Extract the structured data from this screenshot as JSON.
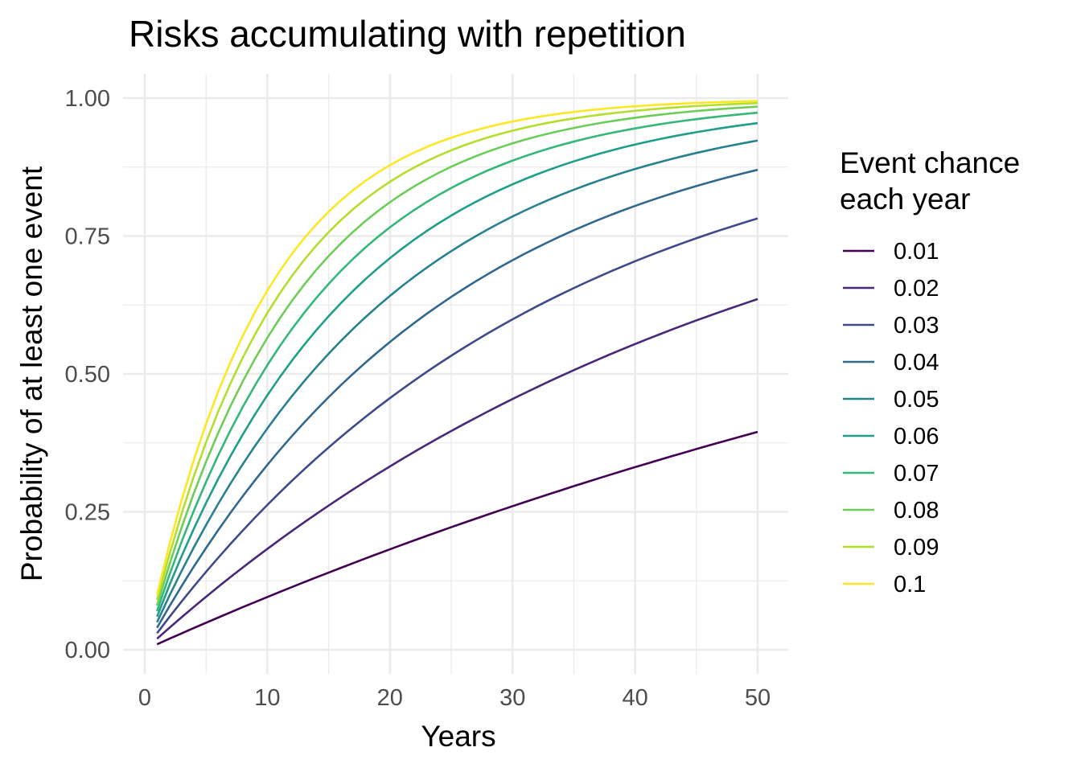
{
  "chart_data": {
    "type": "line",
    "title": "Risks accumulating with repetition",
    "xlabel": "Years",
    "ylabel": "Probability of at least one event",
    "xlim": [
      0,
      50
    ],
    "ylim": [
      0,
      1
    ],
    "x_ticks": [
      0,
      10,
      20,
      30,
      40,
      50
    ],
    "x_tick_labels": [
      "0",
      "10",
      "20",
      "30",
      "40",
      "50"
    ],
    "y_ticks": [
      0,
      0.25,
      0.5,
      0.75,
      1
    ],
    "y_tick_labels": [
      "0.00",
      "0.25",
      "0.50",
      "0.75",
      "1.00"
    ],
    "grid": true,
    "legend": {
      "title_lines": [
        "Event chance",
        "each year"
      ],
      "position": "right"
    },
    "x": [
      1,
      2,
      3,
      4,
      5,
      6,
      7,
      8,
      9,
      10,
      11,
      12,
      13,
      14,
      15,
      16,
      17,
      18,
      19,
      20,
      21,
      22,
      23,
      24,
      25,
      26,
      27,
      28,
      29,
      30,
      31,
      32,
      33,
      34,
      35,
      36,
      37,
      38,
      39,
      40,
      41,
      42,
      43,
      44,
      45,
      46,
      47,
      48,
      49,
      50
    ],
    "series": [
      {
        "name": "0.01",
        "color": "#440154",
        "values": [
          0.01,
          0.0199,
          0.0297,
          0.0394,
          0.049,
          0.0585,
          0.0679,
          0.0773,
          0.0865,
          0.0956,
          0.1047,
          0.1136,
          0.1225,
          0.1313,
          0.1399,
          0.1485,
          0.157,
          0.1655,
          0.1738,
          0.1821,
          0.1903,
          0.1984,
          0.2064,
          0.2143,
          0.2222,
          0.2299,
          0.2376,
          0.2453,
          0.2528,
          0.2603,
          0.2677,
          0.275,
          0.2823,
          0.2894,
          0.2966,
          0.3036,
          0.3106,
          0.3175,
          0.3243,
          0.331,
          0.3377,
          0.3444,
          0.3509,
          0.3574,
          0.3638,
          0.3702,
          0.3765,
          0.3827,
          0.3889,
          0.395
        ]
      },
      {
        "name": "0.02",
        "color": "#482878",
        "values": [
          0.02,
          0.0396,
          0.0588,
          0.0776,
          0.0961,
          0.1142,
          0.1319,
          0.1492,
          0.1663,
          0.1829,
          0.1993,
          0.2153,
          0.231,
          0.2463,
          0.2614,
          0.2762,
          0.2907,
          0.3049,
          0.3188,
          0.3324,
          0.3458,
          0.3589,
          0.3717,
          0.3843,
          0.3965,
          0.4086,
          0.4204,
          0.432,
          0.4434,
          0.4545,
          0.4654,
          0.4761,
          0.4866,
          0.4968,
          0.5069,
          0.5167,
          0.5264,
          0.5359,
          0.5451,
          0.5542,
          0.5631,
          0.5718,
          0.5804,
          0.5888,
          0.597,
          0.605,
          0.6129,
          0.6206,
          0.6282,
          0.6358
        ]
      },
      {
        "name": "0.03",
        "color": "#3E4A89",
        "values": [
          0.03,
          0.0591,
          0.0873,
          0.1147,
          0.1413,
          0.167,
          0.192,
          0.2163,
          0.2398,
          0.2626,
          0.2847,
          0.3062,
          0.327,
          0.3472,
          0.3667,
          0.3857,
          0.4042,
          0.422,
          0.4394,
          0.4562,
          0.4725,
          0.4883,
          0.5037,
          0.5186,
          0.533,
          0.547,
          0.5606,
          0.5738,
          0.5866,
          0.599,
          0.611,
          0.6227,
          0.634,
          0.645,
          0.6556,
          0.666,
          0.676,
          0.6857,
          0.6951,
          0.7043,
          0.7131,
          0.7217,
          0.73,
          0.7381,
          0.746,
          0.7536,
          0.761,
          0.7681,
          0.7751,
          0.7819
        ]
      },
      {
        "name": "0.04",
        "color": "#31688E",
        "values": [
          0.04,
          0.0784,
          0.1153,
          0.1507,
          0.1846,
          0.2172,
          0.2486,
          0.2786,
          0.3075,
          0.3352,
          0.3618,
          0.3873,
          0.4118,
          0.4353,
          0.4579,
          0.4796,
          0.5004,
          0.5204,
          0.5396,
          0.558,
          0.5757,
          0.5927,
          0.609,
          0.6246,
          0.6396,
          0.654,
          0.6679,
          0.6811,
          0.6939,
          0.7061,
          0.7179,
          0.7291,
          0.74,
          0.7504,
          0.7604,
          0.77,
          0.7792,
          0.788,
          0.7965,
          0.8046,
          0.8124,
          0.8199,
          0.8271,
          0.834,
          0.8406,
          0.847,
          0.8531,
          0.859,
          0.8646,
          0.87
        ]
      },
      {
        "name": "0.05",
        "color": "#26828E",
        "values": [
          0.05,
          0.0975,
          0.1426,
          0.1855,
          0.2262,
          0.2649,
          0.3017,
          0.3366,
          0.3698,
          0.4013,
          0.4312,
          0.4596,
          0.4867,
          0.5123,
          0.5367,
          0.5599,
          0.5819,
          0.6028,
          0.6226,
          0.6415,
          0.6594,
          0.6765,
          0.6926,
          0.708,
          0.7226,
          0.7365,
          0.7497,
          0.7622,
          0.7741,
          0.7854,
          0.7961,
          0.8063,
          0.816,
          0.8252,
          0.8339,
          0.8422,
          0.8501,
          0.8576,
          0.8647,
          0.8715,
          0.8779,
          0.884,
          0.8898,
          0.8953,
          0.9006,
          0.9055,
          0.9103,
          0.9147,
          0.919,
          0.9231
        ]
      },
      {
        "name": "0.06",
        "color": "#1F9E89",
        "values": [
          0.06,
          0.1164,
          0.1694,
          0.2193,
          0.2661,
          0.3101,
          0.3515,
          0.3904,
          0.427,
          0.4614,
          0.4937,
          0.5241,
          0.5526,
          0.5795,
          0.6047,
          0.6284,
          0.6507,
          0.6717,
          0.6914,
          0.7099,
          0.7273,
          0.7437,
          0.7591,
          0.7735,
          0.7871,
          0.7999,
          0.8119,
          0.8232,
          0.8338,
          0.8437,
          0.8531,
          0.8619,
          0.8702,
          0.878,
          0.8853,
          0.8922,
          0.8987,
          0.9047,
          0.9105,
          0.9158,
          0.9209,
          0.9256,
          0.9301,
          0.9343,
          0.9382,
          0.9419,
          0.9454,
          0.9487,
          0.9518,
          0.9547
        ]
      },
      {
        "name": "0.07",
        "color": "#35B779",
        "values": [
          0.07,
          0.1351,
          0.1956,
          0.2519,
          0.3043,
          0.353,
          0.3983,
          0.4404,
          0.4796,
          0.516,
          0.5499,
          0.5814,
          0.6107,
          0.638,
          0.6633,
          0.6869,
          0.7088,
          0.7292,
          0.7481,
          0.7658,
          0.7822,
          0.7974,
          0.8116,
          0.8248,
          0.8371,
          0.8485,
          0.8591,
          0.869,
          0.8781,
          0.8867,
          0.8946,
          0.902,
          0.9089,
          0.9152,
          0.9212,
          0.9267,
          0.9318,
          0.9366,
          0.941,
          0.9451,
          0.949,
          0.9525,
          0.9559,
          0.959,
          0.9618,
          0.9645,
          0.967,
          0.9693,
          0.9715,
          0.9735
        ]
      },
      {
        "name": "0.08",
        "color": "#6DCD59",
        "values": [
          0.08,
          0.1536,
          0.2213,
          0.2836,
          0.3409,
          0.3936,
          0.4422,
          0.4868,
          0.5279,
          0.5656,
          0.6004,
          0.6323,
          0.6617,
          0.6888,
          0.7137,
          0.7366,
          0.7577,
          0.7771,
          0.7949,
          0.8113,
          0.8264,
          0.8403,
          0.853,
          0.8648,
          0.8756,
          0.8855,
          0.8947,
          0.9031,
          0.9108,
          0.918,
          0.9245,
          0.9306,
          0.9361,
          0.9412,
          0.9459,
          0.9503,
          0.9543,
          0.9579,
          0.9613,
          0.9644,
          0.9673,
          0.9699,
          0.9723,
          0.9745,
          0.9766,
          0.9784,
          0.9802,
          0.9818,
          0.9832,
          0.9845
        ]
      },
      {
        "name": "0.09",
        "color": "#B4DE2C",
        "values": [
          0.09,
          0.1719,
          0.2464,
          0.3143,
          0.376,
          0.4322,
          0.4833,
          0.5298,
          0.5721,
          0.6106,
          0.6456,
          0.6775,
          0.7065,
          0.733,
          0.757,
          0.7789,
          0.7988,
          0.8169,
          0.8334,
          0.8484,
          0.862,
          0.8745,
          0.8858,
          0.8961,
          0.9054,
          0.914,
          0.9217,
          0.9288,
          0.9352,
          0.941,
          0.9463,
          0.9512,
          0.9556,
          0.9596,
          0.9632,
          0.9665,
          0.9695,
          0.9722,
          0.9747,
          0.977,
          0.979,
          0.9809,
          0.9826,
          0.9842,
          0.9856,
          0.9869,
          0.9881,
          0.9891,
          0.9901,
          0.991
        ]
      },
      {
        "name": "0.1",
        "color": "#FDE725",
        "values": [
          0.1,
          0.19,
          0.271,
          0.3439,
          0.4095,
          0.4686,
          0.5217,
          0.5695,
          0.6126,
          0.6513,
          0.6862,
          0.7176,
          0.7458,
          0.7712,
          0.7941,
          0.8147,
          0.8332,
          0.8499,
          0.8649,
          0.8784,
          0.8906,
          0.9015,
          0.9114,
          0.9202,
          0.9282,
          0.9354,
          0.9419,
          0.9477,
          0.9529,
          0.9576,
          0.9618,
          0.9657,
          0.9691,
          0.9722,
          0.975,
          0.9775,
          0.9797,
          0.9818,
          0.9836,
          0.9852,
          0.9867,
          0.988,
          0.9892,
          0.9903,
          0.9913,
          0.9921,
          0.9929,
          0.9936,
          0.9943,
          0.9948
        ]
      }
    ]
  }
}
